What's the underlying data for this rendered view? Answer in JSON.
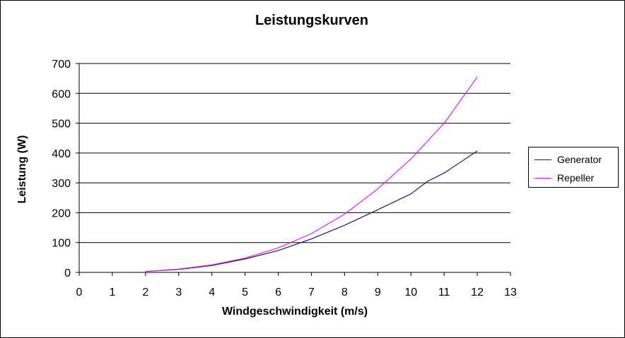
{
  "chart_data": {
    "type": "line",
    "title": "Leistungskurven",
    "xlabel": "Windgeschwindigkeit (m/s)",
    "ylabel": "Leistung (W)",
    "xlim": [
      0,
      13
    ],
    "ylim": [
      0,
      700
    ],
    "x_ticks": [
      0,
      1,
      2,
      3,
      4,
      5,
      6,
      7,
      8,
      9,
      10,
      11,
      12,
      13
    ],
    "y_ticks": [
      0,
      100,
      200,
      300,
      400,
      500,
      600,
      700
    ],
    "grid": "horizontal",
    "legend_position": "right",
    "series": [
      {
        "name": "Generator",
        "color": "#1a1a6e",
        "x": [
          2,
          3,
          4,
          5,
          6,
          7,
          8,
          9,
          10,
          10.5,
          11,
          12
        ],
        "y": [
          3,
          10,
          23,
          45,
          73,
          112,
          158,
          210,
          263,
          305,
          333,
          407
        ]
      },
      {
        "name": "Repeller",
        "color": "#e020e0",
        "x": [
          2,
          3,
          4,
          5,
          6,
          7,
          8,
          9,
          10,
          11,
          12
        ],
        "y": [
          3,
          11,
          25,
          48,
          82,
          130,
          195,
          280,
          380,
          500,
          655
        ]
      }
    ]
  }
}
